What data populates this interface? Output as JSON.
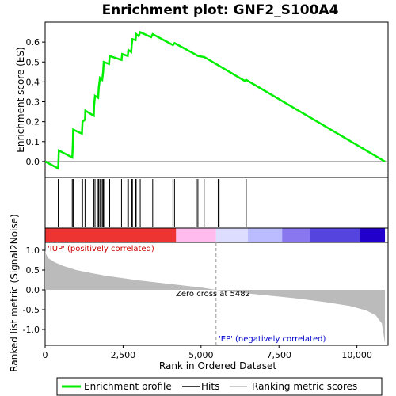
{
  "chart_data": {
    "type": "line",
    "title": "Enrichment plot: GNF2_S100A4",
    "x_axis": {
      "label": "Rank in Ordered Dataset",
      "range": [
        0,
        11000
      ],
      "ticks": [
        0,
        2500,
        5000,
        7500,
        10000
      ],
      "tick_labels": [
        "0",
        "2,500",
        "5,000",
        "7,500",
        "10,000"
      ]
    },
    "es_panel": {
      "ylabel": "Enrichment score (ES)",
      "ylim": [
        -0.08,
        0.7
      ],
      "ticks": [
        0.0,
        0.1,
        0.2,
        0.3,
        0.4,
        0.5,
        0.6
      ],
      "tick_labels": [
        "0.0",
        "0.1",
        "0.2",
        "0.3",
        "0.4",
        "0.5",
        "0.6"
      ],
      "series_name": "Enrichment profile",
      "color": "#00ee00",
      "points": [
        [
          0,
          0.0
        ],
        [
          420,
          -0.035
        ],
        [
          440,
          0.055
        ],
        [
          870,
          0.02
        ],
        [
          890,
          0.09
        ],
        [
          900,
          0.16
        ],
        [
          1180,
          0.14
        ],
        [
          1200,
          0.2
        ],
        [
          1280,
          0.21
        ],
        [
          1290,
          0.255
        ],
        [
          1560,
          0.23
        ],
        [
          1570,
          0.28
        ],
        [
          1600,
          0.33
        ],
        [
          1700,
          0.32
        ],
        [
          1720,
          0.37
        ],
        [
          1760,
          0.42
        ],
        [
          1830,
          0.41
        ],
        [
          1860,
          0.45
        ],
        [
          1880,
          0.5
        ],
        [
          2050,
          0.49
        ],
        [
          2070,
          0.53
        ],
        [
          2450,
          0.51
        ],
        [
          2470,
          0.54
        ],
        [
          2650,
          0.53
        ],
        [
          2670,
          0.56
        ],
        [
          2760,
          0.55
        ],
        [
          2780,
          0.59
        ],
        [
          2800,
          0.615
        ],
        [
          2900,
          0.61
        ],
        [
          2920,
          0.64
        ],
        [
          3000,
          0.63
        ],
        [
          3050,
          0.65
        ],
        [
          3400,
          0.625
        ],
        [
          3450,
          0.64
        ],
        [
          4100,
          0.585
        ],
        [
          4150,
          0.595
        ],
        [
          4850,
          0.535
        ],
        [
          4900,
          0.53
        ],
        [
          5100,
          0.525
        ],
        [
          6400,
          0.405
        ],
        [
          6450,
          0.41
        ],
        [
          10900,
          0.0
        ]
      ]
    },
    "hits": [
      420,
      440,
      870,
      900,
      1180,
      1200,
      1280,
      1560,
      1600,
      1700,
      1720,
      1760,
      1830,
      1860,
      1880,
      2050,
      2070,
      2450,
      2650,
      2670,
      2760,
      2780,
      2800,
      2900,
      2920,
      3050,
      3450,
      4100,
      4150,
      4850,
      4900,
      5100,
      5550,
      5580,
      6450
    ],
    "metric_panel": {
      "ylabel": "Ranked list metric (Signal2Noise)",
      "ylim": [
        -1.4,
        1.2
      ],
      "ticks": [
        1.0,
        0.5,
        0.0,
        -0.5,
        -1.0
      ],
      "tick_labels": [
        "1.0",
        "0.5",
        "0.0",
        "-0.5",
        "-1.0"
      ],
      "series_name": "Ranking metric scores",
      "color": "#bbbbbb",
      "points": [
        [
          0,
          1.0
        ],
        [
          30,
          0.9
        ],
        [
          100,
          0.8
        ],
        [
          300,
          0.7
        ],
        [
          600,
          0.6
        ],
        [
          1000,
          0.5
        ],
        [
          1500,
          0.42
        ],
        [
          2000,
          0.35
        ],
        [
          3000,
          0.24
        ],
        [
          4000,
          0.15
        ],
        [
          5000,
          0.06
        ],
        [
          5482,
          0.0
        ],
        [
          6000,
          -0.05
        ],
        [
          7000,
          -0.13
        ],
        [
          8000,
          -0.21
        ],
        [
          9000,
          -0.31
        ],
        [
          9800,
          -0.41
        ],
        [
          10300,
          -0.52
        ],
        [
          10600,
          -0.64
        ],
        [
          10800,
          -0.85
        ],
        [
          10900,
          -1.35
        ]
      ]
    },
    "gradient_bar": {
      "segments": [
        {
          "start": 0,
          "end": 4200,
          "color": "#ee3333"
        },
        {
          "start": 4200,
          "end": 5482,
          "color": "#ffbbee"
        },
        {
          "start": 5482,
          "end": 6500,
          "color": "#ddddff"
        },
        {
          "start": 6500,
          "end": 7600,
          "color": "#bbbbff"
        },
        {
          "start": 7600,
          "end": 8500,
          "color": "#8877ee"
        },
        {
          "start": 8500,
          "end": 10100,
          "color": "#5544dd"
        },
        {
          "start": 10100,
          "end": 10900,
          "color": "#2200cc"
        }
      ]
    },
    "zero_cross": 5482,
    "annotations": {
      "positive": "'IUP' (positively correlated)",
      "negative": "'EP' (negatively correlated)",
      "zero_cross": "Zero cross at 5482"
    },
    "legend": {
      "items": [
        {
          "label": "Enrichment profile",
          "color": "#00ee00"
        },
        {
          "label": "Hits",
          "color": "#000000"
        },
        {
          "label": "Ranking metric scores",
          "color": "#bbbbbb"
        }
      ]
    }
  }
}
